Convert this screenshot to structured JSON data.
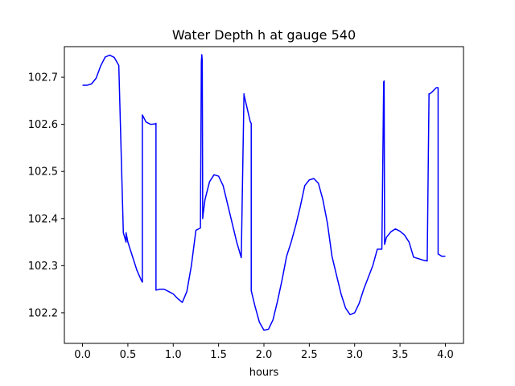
{
  "chart_data": {
    "type": "line",
    "title": "Water Depth h at gauge 540",
    "xlabel": "hours",
    "ylabel": "",
    "xlim": [
      -0.2,
      4.2
    ],
    "ylim": [
      102.135,
      102.765
    ],
    "xticks": [
      0.0,
      0.5,
      1.0,
      1.5,
      2.0,
      2.5,
      3.0,
      3.5,
      4.0
    ],
    "xtick_labels": [
      "0.0",
      "0.5",
      "1.0",
      "1.5",
      "2.0",
      "2.5",
      "3.0",
      "3.5",
      "4.0"
    ],
    "yticks": [
      102.2,
      102.3,
      102.4,
      102.5,
      102.6,
      102.7
    ],
    "ytick_labels": [
      "102.2",
      "102.3",
      "102.4",
      "102.5",
      "102.6",
      "102.7"
    ],
    "grid": false,
    "series": [
      {
        "color": "#0000ff",
        "x": [
          0.0,
          0.05,
          0.1,
          0.15,
          0.2,
          0.25,
          0.3,
          0.35,
          0.4,
          0.45,
          0.48,
          0.48,
          0.5,
          0.55,
          0.6,
          0.65,
          0.66,
          0.66,
          0.7,
          0.75,
          0.8,
          0.81,
          0.81,
          0.85,
          0.9,
          0.95,
          1.0,
          1.05,
          1.1,
          1.15,
          1.2,
          1.25,
          1.3,
          1.31,
          1.315,
          1.32,
          1.325,
          1.33,
          1.35,
          1.4,
          1.45,
          1.5,
          1.55,
          1.6,
          1.65,
          1.7,
          1.75,
          1.78,
          1.78,
          1.82,
          1.85,
          1.86,
          1.86,
          1.9,
          1.95,
          2.0,
          2.05,
          2.1,
          2.15,
          2.2,
          2.25,
          2.3,
          2.35,
          2.4,
          2.45,
          2.5,
          2.55,
          2.6,
          2.65,
          2.7,
          2.75,
          2.8,
          2.85,
          2.9,
          2.95,
          3.0,
          3.05,
          3.1,
          3.15,
          3.2,
          3.25,
          3.3,
          3.32,
          3.325,
          3.33,
          3.35,
          3.4,
          3.45,
          3.5,
          3.55,
          3.6,
          3.65,
          3.7,
          3.75,
          3.8,
          3.82,
          3.83,
          3.83,
          3.86,
          3.9,
          3.92,
          3.92,
          3.96,
          4.0
        ],
        "y": [
          102.683,
          102.683,
          102.686,
          102.698,
          102.724,
          102.743,
          102.747,
          102.742,
          102.725,
          102.37,
          102.35,
          102.37,
          102.35,
          102.32,
          102.29,
          102.268,
          102.265,
          102.62,
          102.605,
          102.6,
          102.601,
          102.602,
          102.248,
          102.25,
          102.25,
          102.245,
          102.24,
          102.23,
          102.222,
          102.245,
          102.3,
          102.375,
          102.38,
          102.733,
          102.748,
          102.735,
          102.4,
          102.41,
          102.44,
          102.478,
          102.493,
          102.49,
          102.47,
          102.43,
          102.39,
          102.35,
          102.317,
          102.665,
          102.663,
          102.63,
          102.605,
          102.602,
          102.247,
          102.215,
          102.18,
          102.163,
          102.165,
          102.185,
          102.225,
          102.27,
          102.32,
          102.35,
          102.385,
          102.425,
          102.47,
          102.482,
          102.485,
          102.475,
          102.44,
          102.39,
          102.32,
          102.28,
          102.24,
          102.21,
          102.196,
          102.2,
          102.22,
          102.25,
          102.275,
          102.3,
          102.335,
          102.335,
          102.69,
          102.692,
          102.345,
          102.36,
          102.372,
          102.378,
          102.373,
          102.365,
          102.35,
          102.318,
          102.315,
          102.312,
          102.31,
          102.665,
          102.665,
          102.665,
          102.67,
          102.678,
          102.678,
          102.325,
          102.32,
          102.32
        ]
      }
    ]
  }
}
